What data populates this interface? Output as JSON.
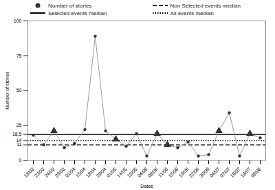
{
  "chart_data": {
    "type": "line",
    "x_label": "Dates",
    "y_label": "Number of stories",
    "categories": [
      "18/03",
      "23/03",
      "24/03",
      "29/03",
      "01/04",
      "15/04",
      "18/04",
      "28/04",
      "01/05",
      "14/05",
      "15/05",
      "04/06",
      "08/06",
      "11/06",
      "15/06",
      "19/06",
      "22/06",
      "30/06",
      "04/07",
      "07/07",
      "16/07",
      "18/07",
      "08/08"
    ],
    "series": [
      {
        "name": "Number of stories",
        "color": "#999999",
        "marker": "circle",
        "values": [
          18,
          11,
          21,
          9,
          12,
          22,
          89,
          21,
          15,
          10,
          19,
          3,
          19,
          11,
          9,
          13,
          3,
          4,
          21,
          34,
          3,
          19,
          16
        ],
        "point_markers": [
          "circle",
          "circle",
          "triangle",
          "circle",
          "circle",
          "circle",
          "circle",
          "circle",
          "triangle",
          "circle",
          "circle",
          "circle",
          "triangle",
          "triangle",
          "circle",
          "circle",
          "circle",
          "circle",
          "triangle",
          "circle",
          "circle",
          "triangle",
          "circle"
        ]
      }
    ],
    "reference_lines": [
      {
        "name": "Non Selected events median",
        "value": 11,
        "line_style": "dashed",
        "color": "#000000"
      },
      {
        "name": "Selected events median",
        "value": 18.5,
        "line_style": "solid",
        "color": "#000000"
      },
      {
        "name": "All events median",
        "value": 14,
        "line_style": "dotted",
        "color": "#000000"
      }
    ],
    "ylim": [
      0,
      100
    ],
    "yticks": [
      0,
      11,
      14,
      {
        "value": 18.5,
        "label": "18,5"
      },
      25,
      50,
      75,
      100
    ],
    "grid": false,
    "legend": "top-left"
  }
}
